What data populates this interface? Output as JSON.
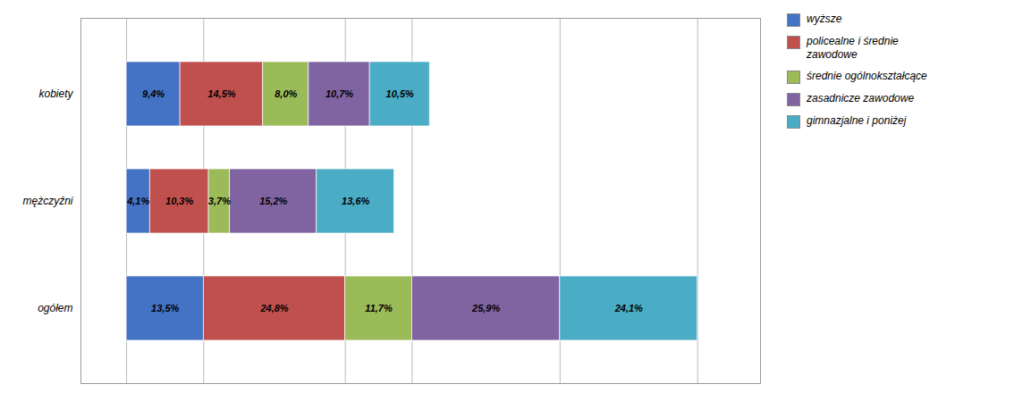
{
  "chart_data": {
    "type": "bar",
    "orientation": "horizontal",
    "stacked": true,
    "categories": [
      "ogółem",
      "mężczyźni",
      "kobiety"
    ],
    "series": [
      {
        "name": "wyższe",
        "color": "#4472C4",
        "values": [
          13.5,
          4.1,
          9.4
        ],
        "value_labels": [
          "13,5%",
          "4,1%",
          "9,4%"
        ]
      },
      {
        "name": "policealne i średnie\nzawodowe",
        "color": "#C0504D",
        "values": [
          24.8,
          10.3,
          14.5
        ],
        "value_labels": [
          "24,8%",
          "10,3%",
          "14,5%"
        ]
      },
      {
        "name": "średnie ogólnokształcące",
        "color": "#9BBB59",
        "values": [
          11.7,
          3.7,
          8.0
        ],
        "value_labels": [
          "11,7%",
          "3,7%",
          "8,0%"
        ]
      },
      {
        "name": "zasadnicze zawodowe",
        "color": "#8064A2",
        "values": [
          25.9,
          15.2,
          10.7
        ],
        "value_labels": [
          "25,9%",
          "15,2%",
          "10,7%"
        ]
      },
      {
        "name": "gimnazjalne i poniżej",
        "color": "#4BACC6",
        "values": [
          24.1,
          13.6,
          10.5
        ],
        "value_labels": [
          "24,1%",
          "13,6%",
          "10,5%"
        ]
      }
    ],
    "xlim": [
      -8,
      111
    ],
    "xticks": [
      0,
      13.5,
      38.3,
      50,
      75.9,
      100
    ],
    "grid": true,
    "tick_labels": "y",
    "data_labels": true,
    "legend": "upper right"
  }
}
